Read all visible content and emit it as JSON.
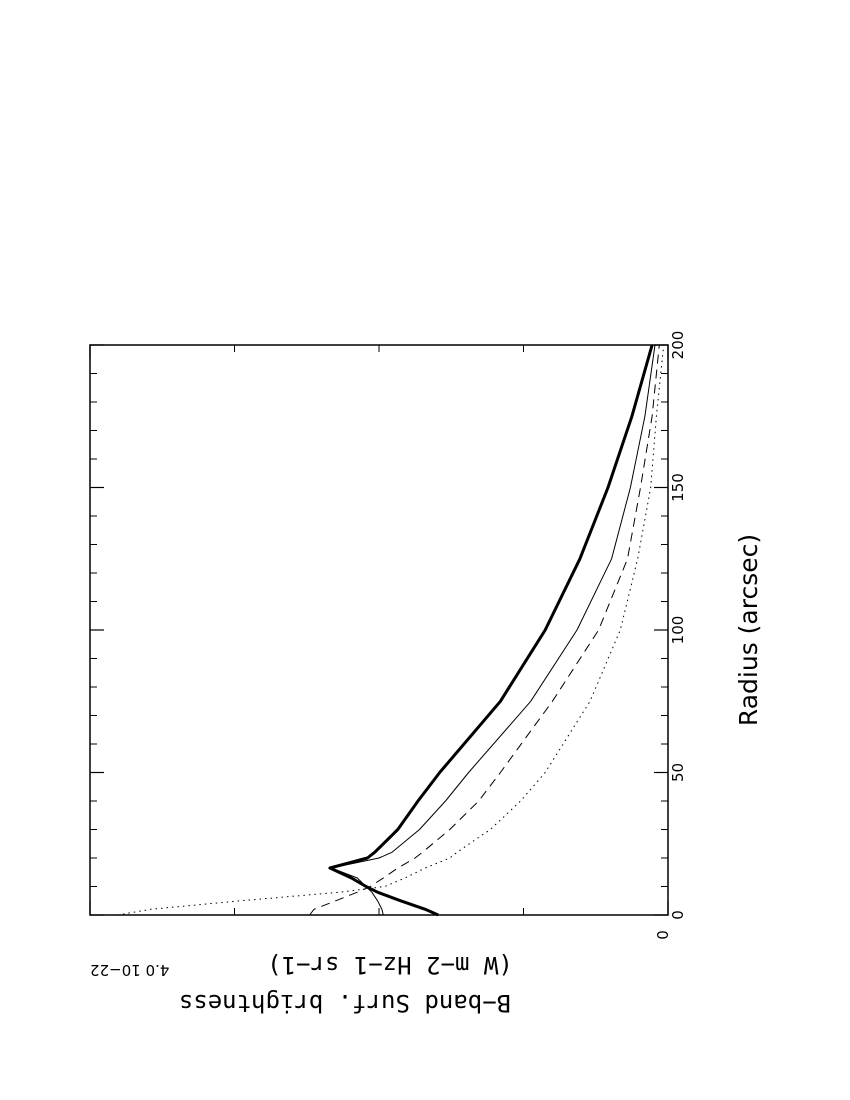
{
  "chart_data": {
    "type": "line",
    "x_label": "Radius (arcsec)",
    "y_label": [
      "B−band Surf. brightness",
      "(W m−2 Hz−1 sr−1)"
    ],
    "x": [
      0,
      2,
      5,
      8,
      10,
      13,
      16.5,
      20,
      22,
      30,
      40,
      50,
      75,
      100,
      125,
      150,
      175,
      200
    ],
    "xlim": [
      0,
      200
    ],
    "xticks": [
      0,
      50,
      100,
      150,
      200
    ],
    "xminorticks": [
      10,
      20,
      30,
      40,
      60,
      70,
      80,
      90,
      110,
      120,
      130,
      140,
      160,
      170,
      180,
      190
    ],
    "ylim": [
      0,
      4e-22
    ],
    "yticks": [
      0,
      {
        "value": 4e-22,
        "label": "4.0 10−22"
      }
    ],
    "yminorticks": [
      1e-22,
      2e-22,
      3e-22
    ],
    "series": [
      {
        "color": "#000000",
        "width": 3,
        "dash": "none",
        "values": [
          1.59e-22,
          1.68e-22,
          1.85e-22,
          2.01e-22,
          2.09e-22,
          2.19e-22,
          2.34e-22,
          2.08e-22,
          2.03e-22,
          1.87e-22,
          1.73e-22,
          1.58e-22,
          1.16e-22,
          8.5e-23,
          6.1e-23,
          4.15e-23,
          2.5e-23,
          1.1e-23
        ]
      },
      {
        "color": "#000000",
        "width": 1,
        "dash": "none",
        "values": [
          1.97e-22,
          1.98e-22,
          2.01e-22,
          2.05e-22,
          2.09e-22,
          2.15e-22,
          2.33e-22,
          2e-22,
          1.91e-22,
          1.72e-22,
          1.54e-22,
          1.38e-22,
          9.5e-23,
          6.3e-23,
          3.9e-23,
          2.6e-23,
          1.6e-23,
          9e-24
        ]
      },
      {
        "color": "#000000",
        "width": 1,
        "dash": "9 6",
        "values": [
          2.48e-22,
          2.45e-22,
          2.3e-22,
          2.15e-22,
          2.06e-22,
          1.97e-22,
          1.87e-22,
          1.75e-22,
          1.7e-22,
          1.51e-22,
          1.31e-22,
          1.16e-22,
          8e-23,
          4.8e-23,
          2.8e-23,
          1.9e-23,
          1.1e-23,
          6e-24
        ]
      },
      {
        "color": "#000000",
        "width": 1,
        "dash": "1.5 4",
        "values": [
          3.81e-22,
          3.58e-22,
          2.96e-22,
          2.27e-22,
          1.96e-22,
          1.82e-22,
          1.68e-22,
          1.51e-22,
          1.46e-22,
          1.23e-22,
          1.02e-22,
          8.5e-23,
          5.4e-23,
          3.3e-23,
          2.1e-23,
          1.2e-23,
          8e-24,
          3e-24
        ]
      }
    ]
  }
}
